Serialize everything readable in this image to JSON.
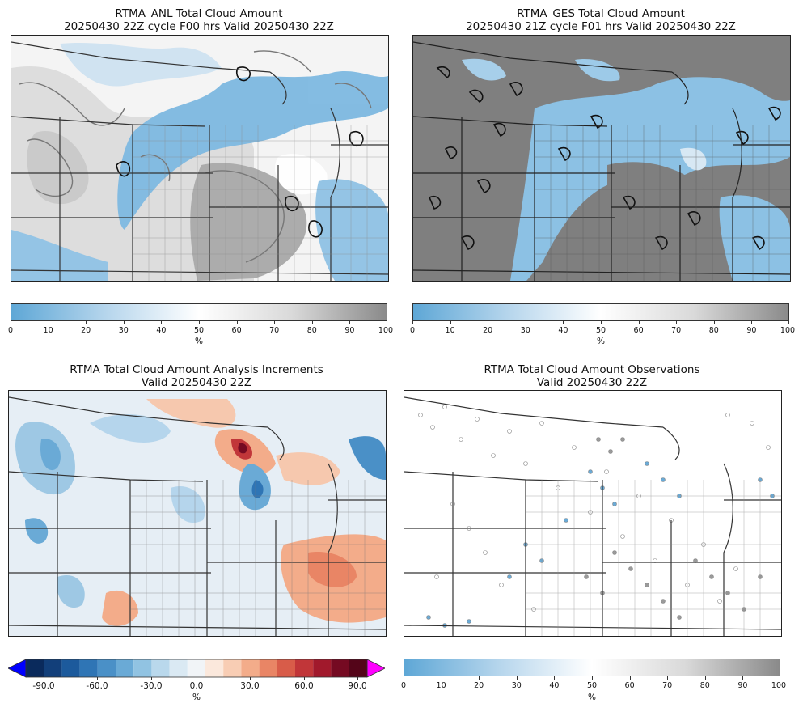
{
  "panels": {
    "anl": {
      "title_line1": "RTMA_ANL Total Cloud Amount",
      "title_line2": "20250430 22Z cycle F00 hrs Valid 20250430 22Z"
    },
    "ges": {
      "title_line1": "RTMA_GES Total Cloud Amount",
      "title_line2": "20250430 21Z cycle F01 hrs Valid 20250430 22Z"
    },
    "inc": {
      "title_line1": "RTMA Total Cloud Amount Analysis Increments",
      "title_line2": "Valid 20250430 22Z"
    },
    "obs": {
      "title_line1": "RTMA Total Cloud Amount Observations",
      "title_line2": "Valid 20250430 22Z"
    }
  },
  "colorbars": {
    "cloud": {
      "ticks": [
        "0",
        "10",
        "20",
        "30",
        "40",
        "50",
        "60",
        "70",
        "80",
        "90",
        "100"
      ],
      "unit": "%",
      "colors": [
        "#5ea7d6",
        "#ffffff",
        "#8a8a8a"
      ]
    },
    "increment": {
      "ticks": [
        "-90.0",
        "-60.0",
        "-30.0",
        "0.0",
        "30.0",
        "60.0",
        "90.0"
      ],
      "unit": "%",
      "under_color": "#0000ff",
      "over_color": "#ff00ff",
      "colors": [
        "#0a2a5c",
        "#123f7a",
        "#1c5a9c",
        "#2f75b5",
        "#4a90c7",
        "#6aaad6",
        "#91c3e2",
        "#b9d8ec",
        "#dae9f3",
        "#f1f4f7",
        "#fbe8dc",
        "#f8cdb4",
        "#f3ac8a",
        "#e98565",
        "#d85c49",
        "#c13639",
        "#a1192c",
        "#750a22",
        "#540519"
      ]
    }
  }
}
